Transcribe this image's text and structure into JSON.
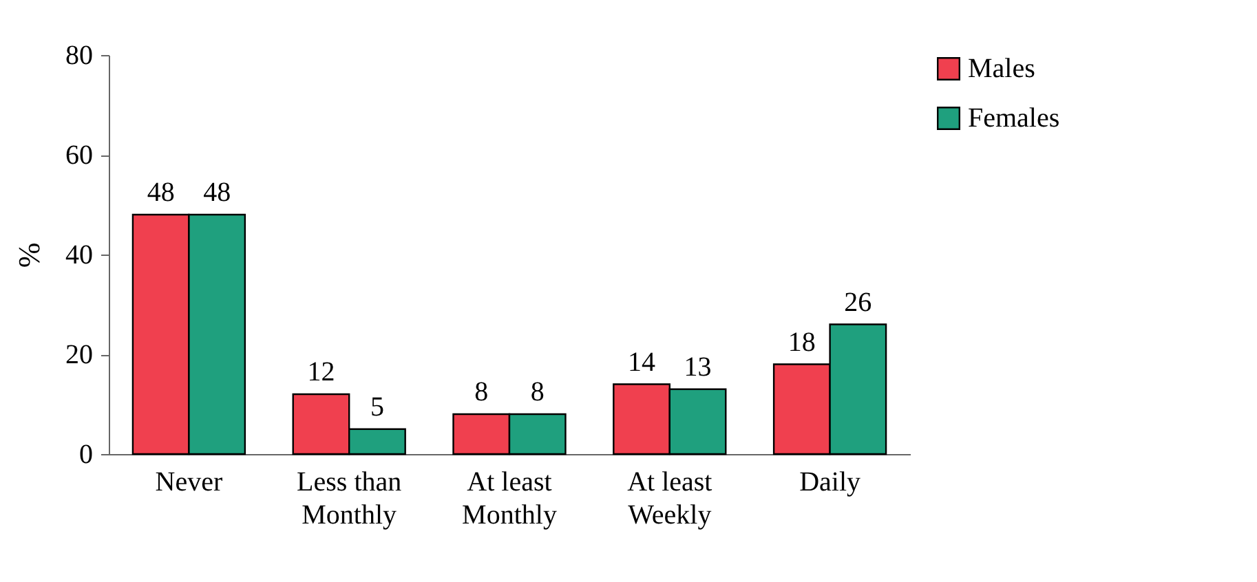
{
  "chart_data": {
    "type": "bar",
    "ylabel": "%",
    "categories": [
      "Never",
      "Less than Monthly",
      "At least Monthly",
      "At least Weekly",
      "Daily"
    ],
    "series": [
      {
        "name": "Males",
        "color": "#f0404f",
        "values": [
          48,
          12,
          8,
          14,
          18
        ]
      },
      {
        "name": "Females",
        "color": "#1fa07e",
        "values": [
          48,
          5,
          8,
          13,
          26
        ]
      }
    ],
    "ylim": [
      0,
      80
    ],
    "yticks": [
      0,
      20,
      40,
      60,
      80
    ],
    "data_labels": true,
    "grid": false,
    "legend": "right"
  }
}
